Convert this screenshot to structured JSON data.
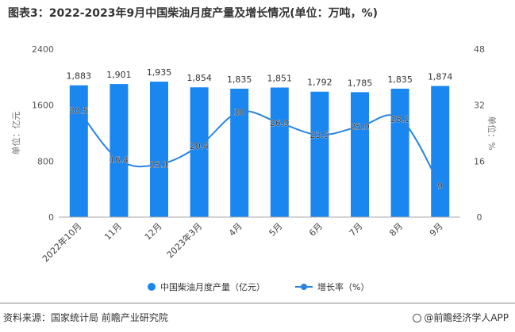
{
  "title": "图表3：2022-2023年9月中国柴油月度产量及增长情况(单位：万吨，%)",
  "colors": {
    "bar": "#1a86f0",
    "line": "#2a84e0",
    "axis": "#999999",
    "text": "#333333"
  },
  "chart_data": {
    "type": "bar+line",
    "categories": [
      "2022年10月",
      "11月",
      "12月",
      "2023年3月",
      "4月",
      "5月",
      "6月",
      "7月",
      "8月",
      "9月"
    ],
    "series": [
      {
        "name": "中国柴油月度产量（亿元）",
        "type": "bar",
        "axis": "left",
        "values": [
          1883,
          1901,
          1935,
          1854,
          1835,
          1851,
          1792,
          1785,
          1835,
          1874
        ],
        "labels": [
          "1,883",
          "1,901",
          "1,935",
          "1,854",
          "1,835",
          "1,851",
          "1,792",
          "1,785",
          "1,835",
          "1,874"
        ]
      },
      {
        "name": "增长率（%）",
        "type": "line",
        "axis": "right",
        "values": [
          30.5,
          16.4,
          15.1,
          20.4,
          30,
          26.9,
          23.5,
          25.9,
          28.1,
          9
        ],
        "labels": [
          "30.5",
          "16.4",
          "15.1",
          "20.4",
          "30",
          "26.9",
          "23.5",
          "25.9",
          "28.1",
          "9"
        ]
      }
    ],
    "left_axis": {
      "label": "单位：亿元",
      "min": 0,
      "max": 2400,
      "ticks": [
        "0",
        "800",
        "1600",
        "2400"
      ]
    },
    "right_axis": {
      "label": "单位：%",
      "min": 0,
      "max": 48,
      "ticks": [
        "0",
        "16",
        "32",
        "48"
      ]
    }
  },
  "legend": {
    "bar_label": "中国柴油月度产量（亿元）",
    "line_label": "增长率（%）"
  },
  "footer": {
    "source": "资料来源：国家统计局 前瞻产业研究院",
    "brand": "@前瞻经济学人APP"
  }
}
